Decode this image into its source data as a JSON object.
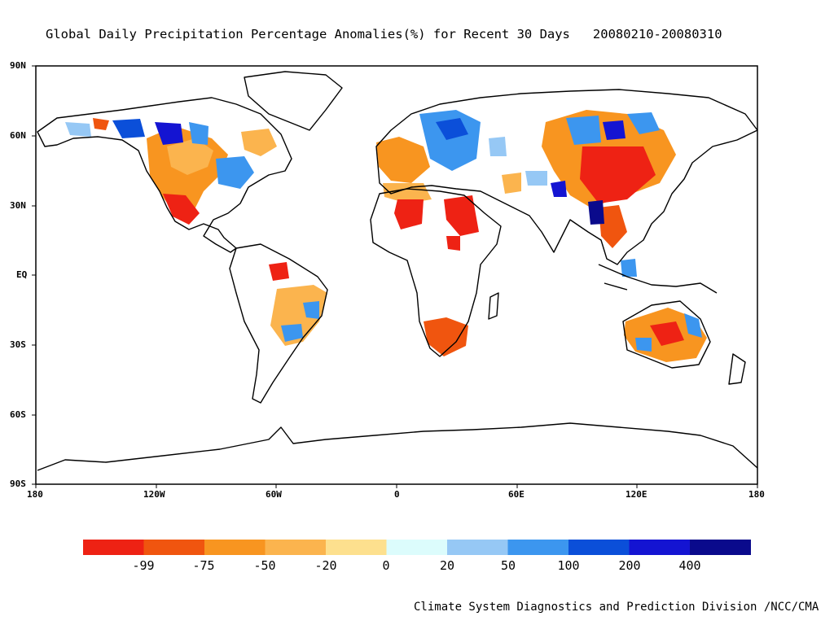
{
  "title": "Global Daily Precipitation Percentage Anomalies(%) for Recent 30 Days",
  "date_range": "20080210-20080310",
  "credit": "Climate System Diagnostics and Prediction Division /NCC/CMA",
  "axes": {
    "lat_labels": [
      "90N",
      "60N",
      "30N",
      "EQ",
      "30S",
      "60S",
      "90S"
    ],
    "lon_labels": [
      "180",
      "120W",
      "60W",
      "0",
      "60E",
      "120E",
      "180"
    ]
  },
  "colorbar": {
    "colors": [
      "#ee2214",
      "#f0550f",
      "#f89520",
      "#fbb44e",
      "#fde08e",
      "#dcfcfc",
      "#96c8f5",
      "#3c96ef",
      "#0b4fd9",
      "#1414d2",
      "#0a0a8c"
    ],
    "labels": [
      "-99",
      "-75",
      "-50",
      "-20",
      "0",
      "20",
      "50",
      "100",
      "200",
      "400"
    ]
  }
}
